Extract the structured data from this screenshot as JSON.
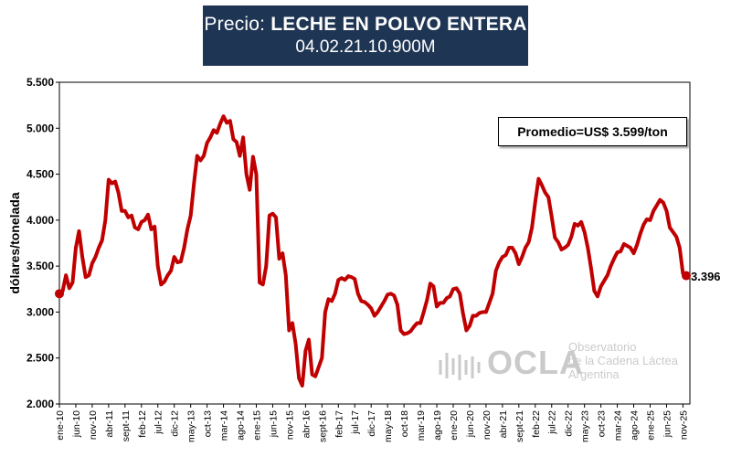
{
  "header": {
    "title_prefix": "Precio:",
    "title_main": "LECHE EN POLVO ENTERA",
    "code": "04.02.21.10.900M"
  },
  "average_box": {
    "text": "Promedio=US$ 3.599/ton"
  },
  "last_value_label": "3.396",
  "watermark": {
    "name": "OCLA",
    "line1": "Observatorio",
    "line2": "de la Cadena Láctea",
    "line3": "Argentina"
  },
  "colors": {
    "series": "#c00000",
    "title_bg": "#1f3554"
  },
  "chart_data": {
    "type": "line",
    "title": "Precio: LECHE EN POLVO ENTERA",
    "subtitle": "04.02.21.10.900M",
    "ylabel": "dólares/tonelada",
    "xlabel": "",
    "ylim": [
      2000,
      5500
    ],
    "yticks": [
      2000,
      2500,
      3000,
      3500,
      4000,
      4500,
      5000,
      5500
    ],
    "ytick_labels": [
      "2.000",
      "2.500",
      "3.000",
      "3.500",
      "4.000",
      "4.500",
      "5.000",
      "5.500"
    ],
    "x_start": "ene-10",
    "x_end": "dic-25",
    "xtick_labels": [
      "ene-10",
      "jun-10",
      "nov-10",
      "abr-11",
      "sept-11",
      "feb-12",
      "jul-12",
      "dic-12",
      "may-13",
      "oct-13",
      "mar-14",
      "ago-14",
      "ene-15",
      "jun-15",
      "nov-15",
      "abr-16",
      "sept-16",
      "feb-17",
      "jul-17",
      "dic-17",
      "may-18",
      "oct-18",
      "mar-19",
      "ago-19",
      "ene-20",
      "jun-20",
      "nov-20",
      "abr-21",
      "sept-21",
      "feb-22",
      "jul-22",
      "dic-22",
      "may-23",
      "oct-23",
      "mar-24",
      "ago-24",
      "ene-25",
      "jun-25",
      "nov-25"
    ],
    "grid": false,
    "legend": "none",
    "average": 3599,
    "last_value": 3396,
    "series": [
      {
        "values": [
          3200,
          3230,
          3400,
          3260,
          3320,
          3700,
          3880,
          3600,
          3380,
          3400,
          3530,
          3600,
          3700,
          3780,
          4000,
          4440,
          4400,
          4420,
          4300,
          4100,
          4100,
          4030,
          4050,
          3920,
          3900,
          3980,
          4000,
          4060,
          3900,
          3930,
          3500,
          3300,
          3330,
          3400,
          3450,
          3600,
          3540,
          3550,
          3700,
          3900,
          4050,
          4400,
          4700,
          4650,
          4700,
          4840,
          4900,
          4980,
          4950,
          5050,
          5130,
          5060,
          5080,
          4880,
          4850,
          4700,
          4900,
          4500,
          4330,
          4690,
          4500,
          3320,
          3300,
          3500,
          4050,
          4070,
          4030,
          3580,
          3640,
          3400,
          2800,
          2880,
          2650,
          2280,
          2200,
          2580,
          2700,
          2320,
          2300,
          2400,
          2500,
          3000,
          3140,
          3120,
          3200,
          3350,
          3370,
          3350,
          3390,
          3380,
          3360,
          3200,
          3120,
          3110,
          3080,
          3040,
          2960,
          3000,
          3060,
          3120,
          3190,
          3200,
          3180,
          3080,
          2800,
          2760,
          2770,
          2790,
          2840,
          2880,
          2880,
          3000,
          3130,
          3310,
          3280,
          3060,
          3100,
          3100,
          3150,
          3170,
          3250,
          3260,
          3200,
          2980,
          2800,
          2850,
          2960,
          2960,
          2990,
          3000,
          3000,
          3100,
          3200,
          3450,
          3540,
          3600,
          3620,
          3700,
          3700,
          3640,
          3520,
          3600,
          3700,
          3760,
          3920,
          4200,
          4450,
          4380,
          4300,
          4250,
          4040,
          3810,
          3760,
          3680,
          3700,
          3730,
          3820,
          3960,
          3940,
          3980,
          3870,
          3700,
          3480,
          3230,
          3170,
          3280,
          3340,
          3400,
          3500,
          3580,
          3650,
          3660,
          3740,
          3720,
          3700,
          3640,
          3730,
          3850,
          3950,
          4010,
          4000,
          4100,
          4160,
          4220,
          4190,
          4100,
          3920,
          3870,
          3820,
          3700,
          3420,
          3396
        ]
      }
    ]
  }
}
